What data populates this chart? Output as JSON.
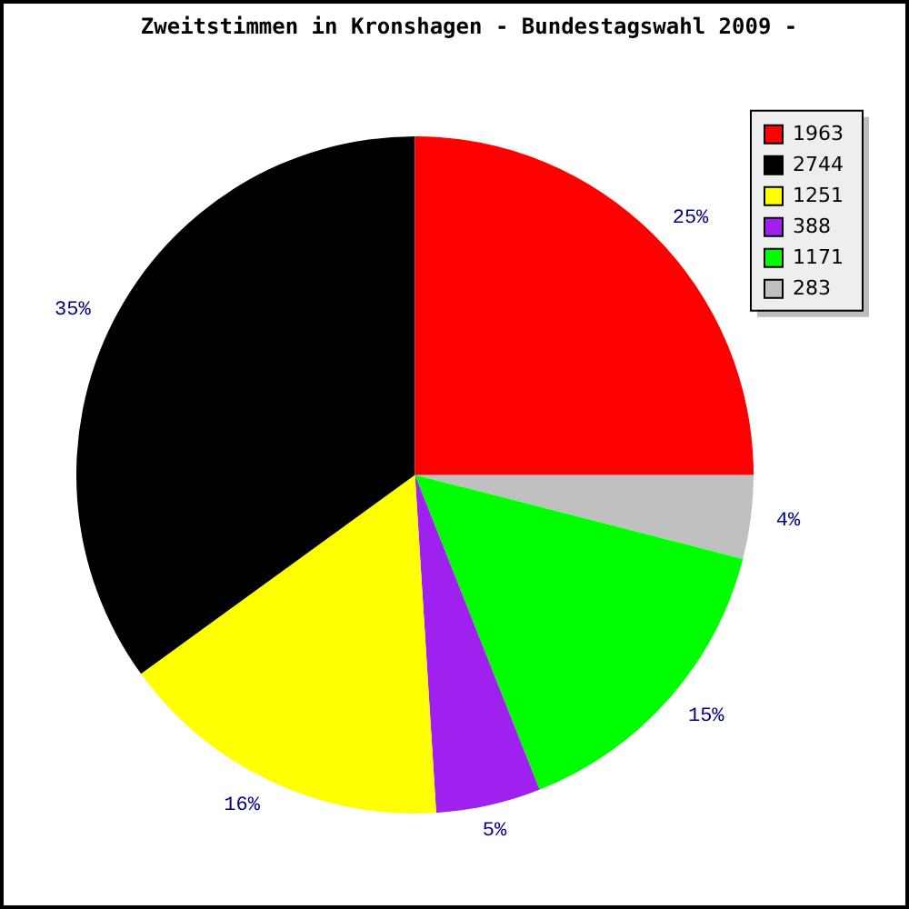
{
  "chart_data": {
    "type": "pie",
    "title": "Zweitstimmen in Kronshagen - Bundestagswahl 2009 -",
    "categories": [
      "1963",
      "2744",
      "1251",
      "388",
      "1171",
      "283"
    ],
    "values": [
      25,
      35,
      16,
      5,
      15,
      4
    ],
    "colors": [
      "#ff0000",
      "#000000",
      "#ffff00",
      "#a020f0",
      "#00ff00",
      "#c0c0c0"
    ],
    "value_labels": [
      "25%",
      "35%",
      "16%",
      "5%",
      "15%",
      "4%"
    ],
    "legend": "top right"
  }
}
